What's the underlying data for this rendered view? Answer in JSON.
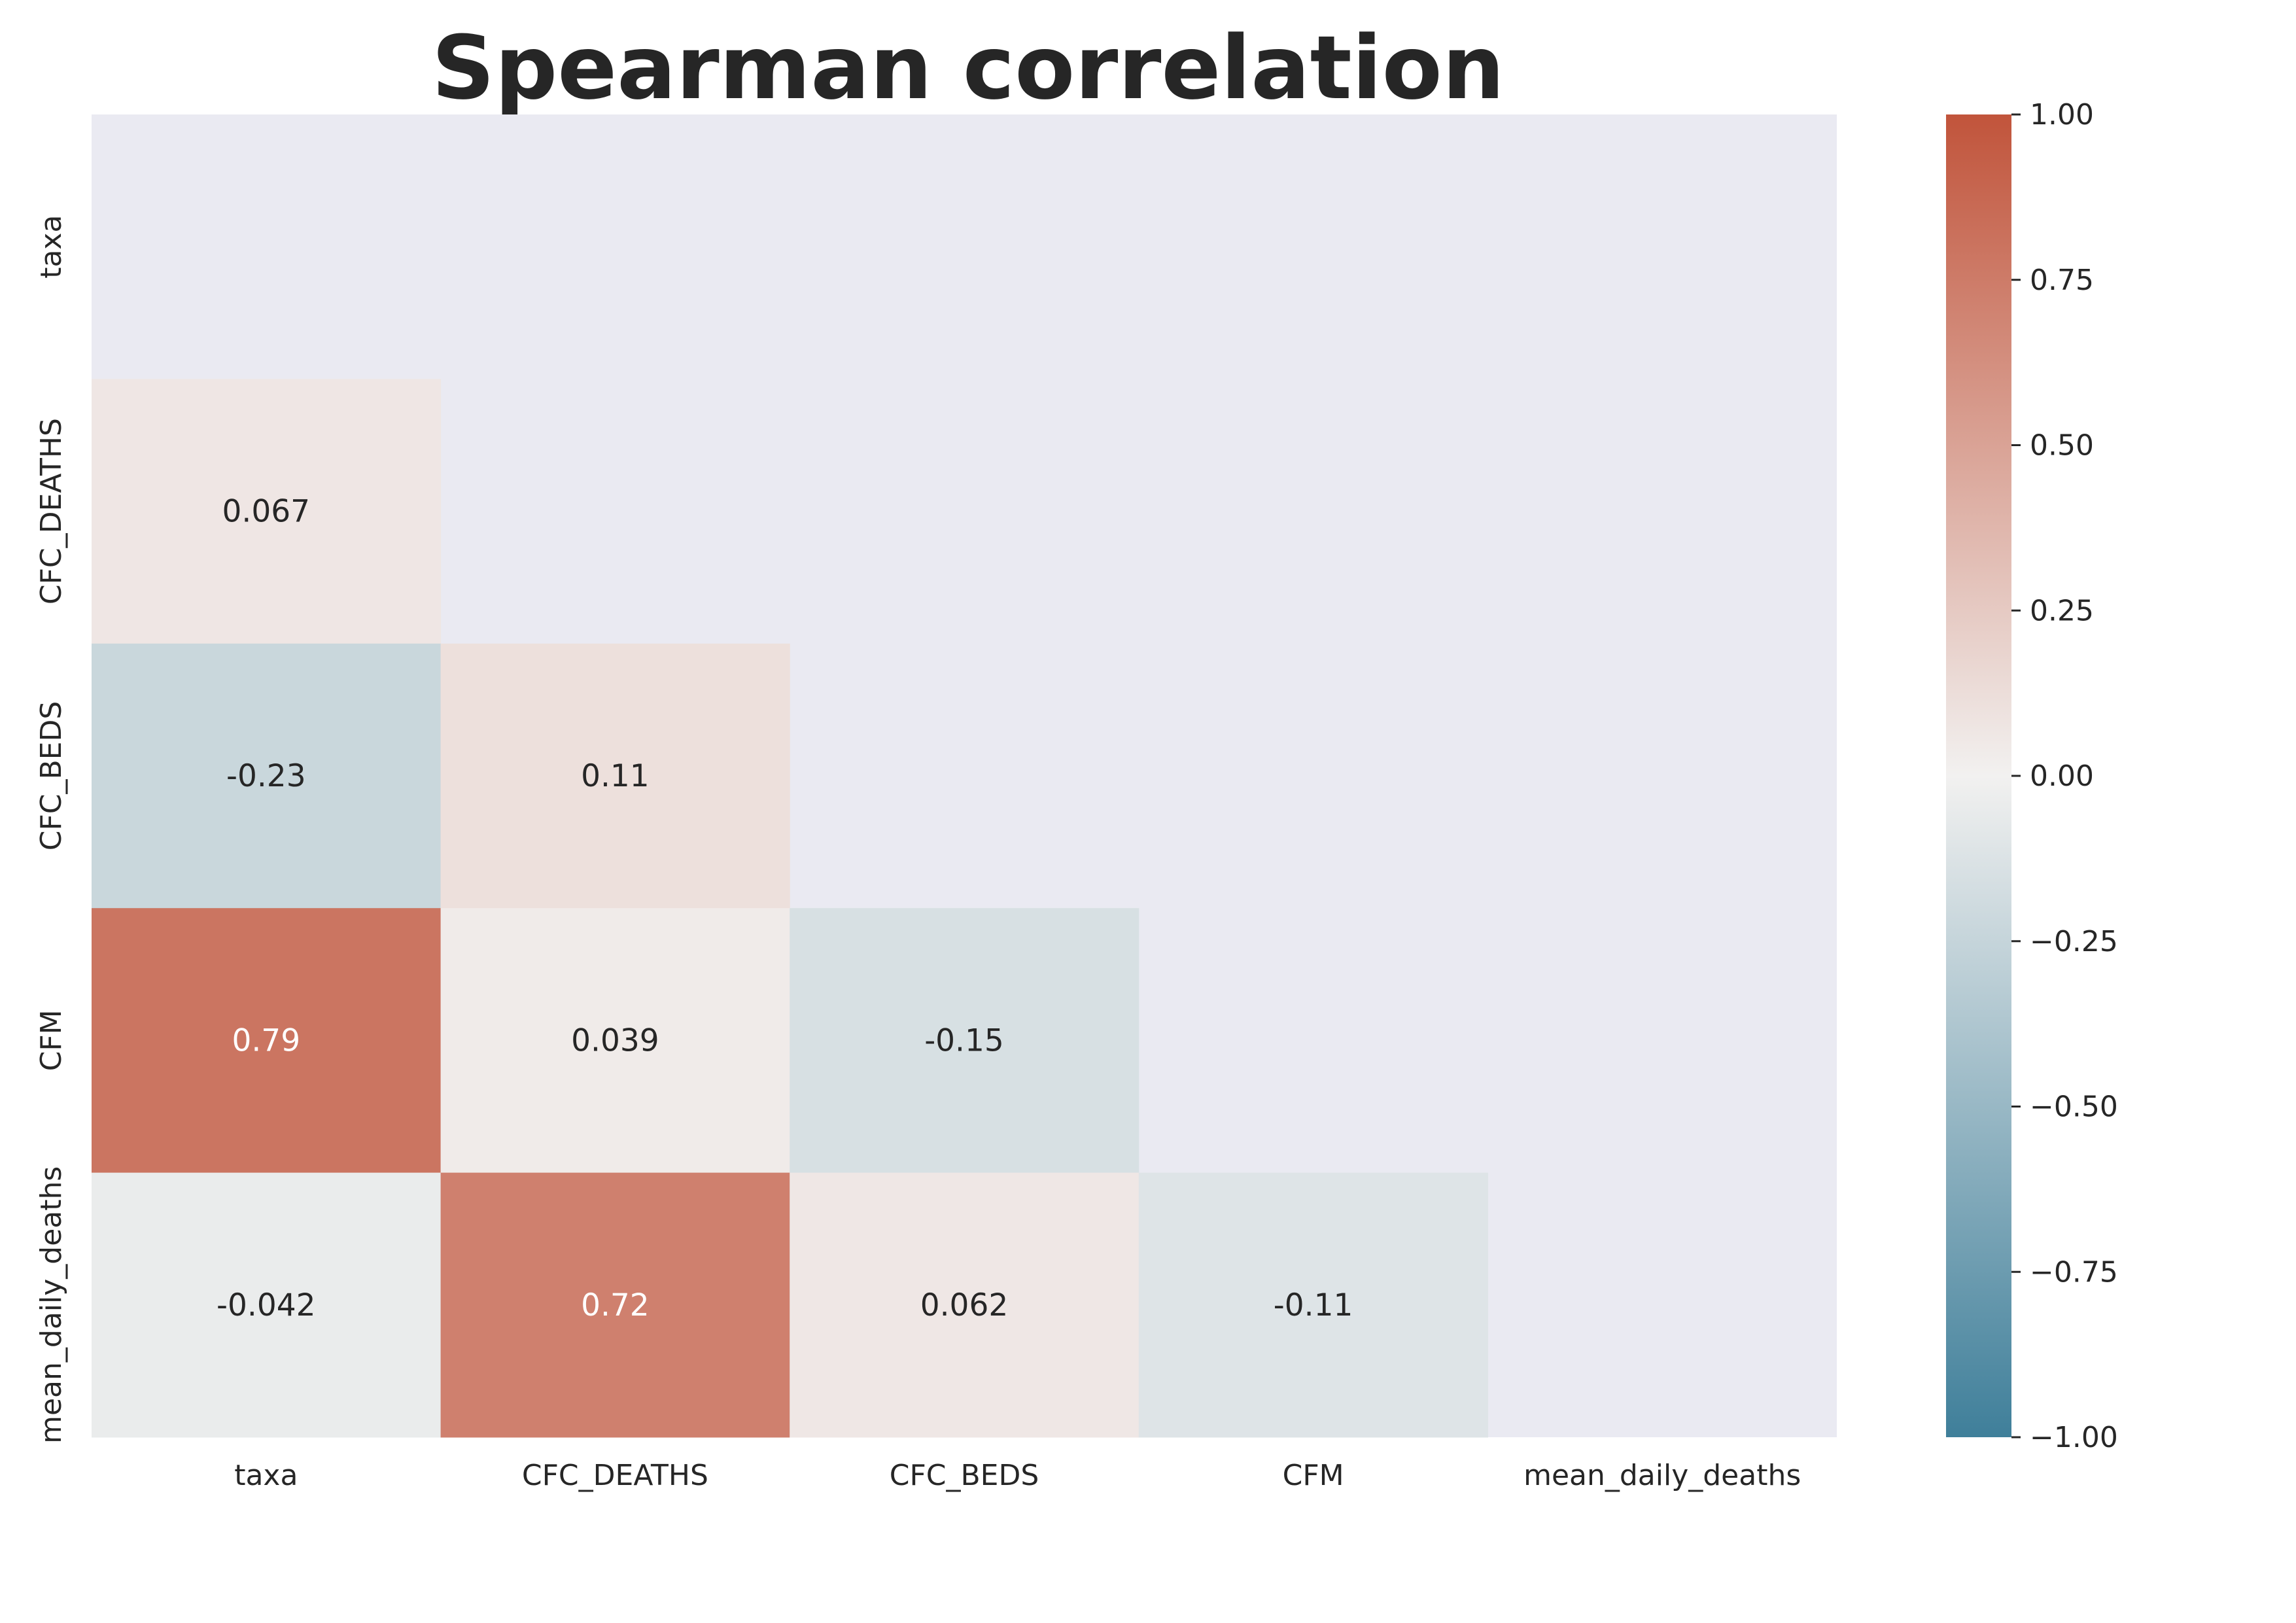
{
  "chart_data": {
    "type": "heatmap",
    "title": "Spearman correlation",
    "variables": [
      "taxa",
      "CFC_DEATHS",
      "CFC_BEDS",
      "CFM",
      "mean_daily_deaths"
    ],
    "mask": "upper-triangle-including-diagonal",
    "cells": [
      {
        "row": "CFC_DEATHS",
        "col": "taxa",
        "value": 0.067,
        "label": "0.067"
      },
      {
        "row": "CFC_BEDS",
        "col": "taxa",
        "value": -0.23,
        "label": "-0.23"
      },
      {
        "row": "CFC_BEDS",
        "col": "CFC_DEATHS",
        "value": 0.11,
        "label": "0.11"
      },
      {
        "row": "CFM",
        "col": "taxa",
        "value": 0.79,
        "label": "0.79"
      },
      {
        "row": "CFM",
        "col": "CFC_DEATHS",
        "value": 0.039,
        "label": "0.039"
      },
      {
        "row": "CFM",
        "col": "CFC_BEDS",
        "value": -0.15,
        "label": "-0.15"
      },
      {
        "row": "mean_daily_deaths",
        "col": "taxa",
        "value": -0.042,
        "label": "-0.042"
      },
      {
        "row": "mean_daily_deaths",
        "col": "CFC_DEATHS",
        "value": 0.72,
        "label": "0.72"
      },
      {
        "row": "mean_daily_deaths",
        "col": "CFC_BEDS",
        "value": 0.062,
        "label": "0.062"
      },
      {
        "row": "mean_daily_deaths",
        "col": "CFM",
        "value": -0.11,
        "label": "-0.11"
      }
    ],
    "colorbar": {
      "range": [
        -1,
        1
      ],
      "ticks": [
        1.0,
        0.75,
        0.5,
        0.25,
        0.0,
        -0.25,
        -0.5,
        -0.75,
        -1.0
      ],
      "tick_labels": [
        "1.00",
        "0.75",
        "0.50",
        "0.25",
        "0.00",
        "−0.25",
        "−0.50",
        "−0.75",
        "−1.00"
      ]
    },
    "colors": {
      "negative": "#3f7f9a",
      "center": "#f2f1f0",
      "positive": "#c1543b",
      "background": "#eaeaf2",
      "dark_text": "#262626",
      "light_text": "#ffffff"
    }
  }
}
